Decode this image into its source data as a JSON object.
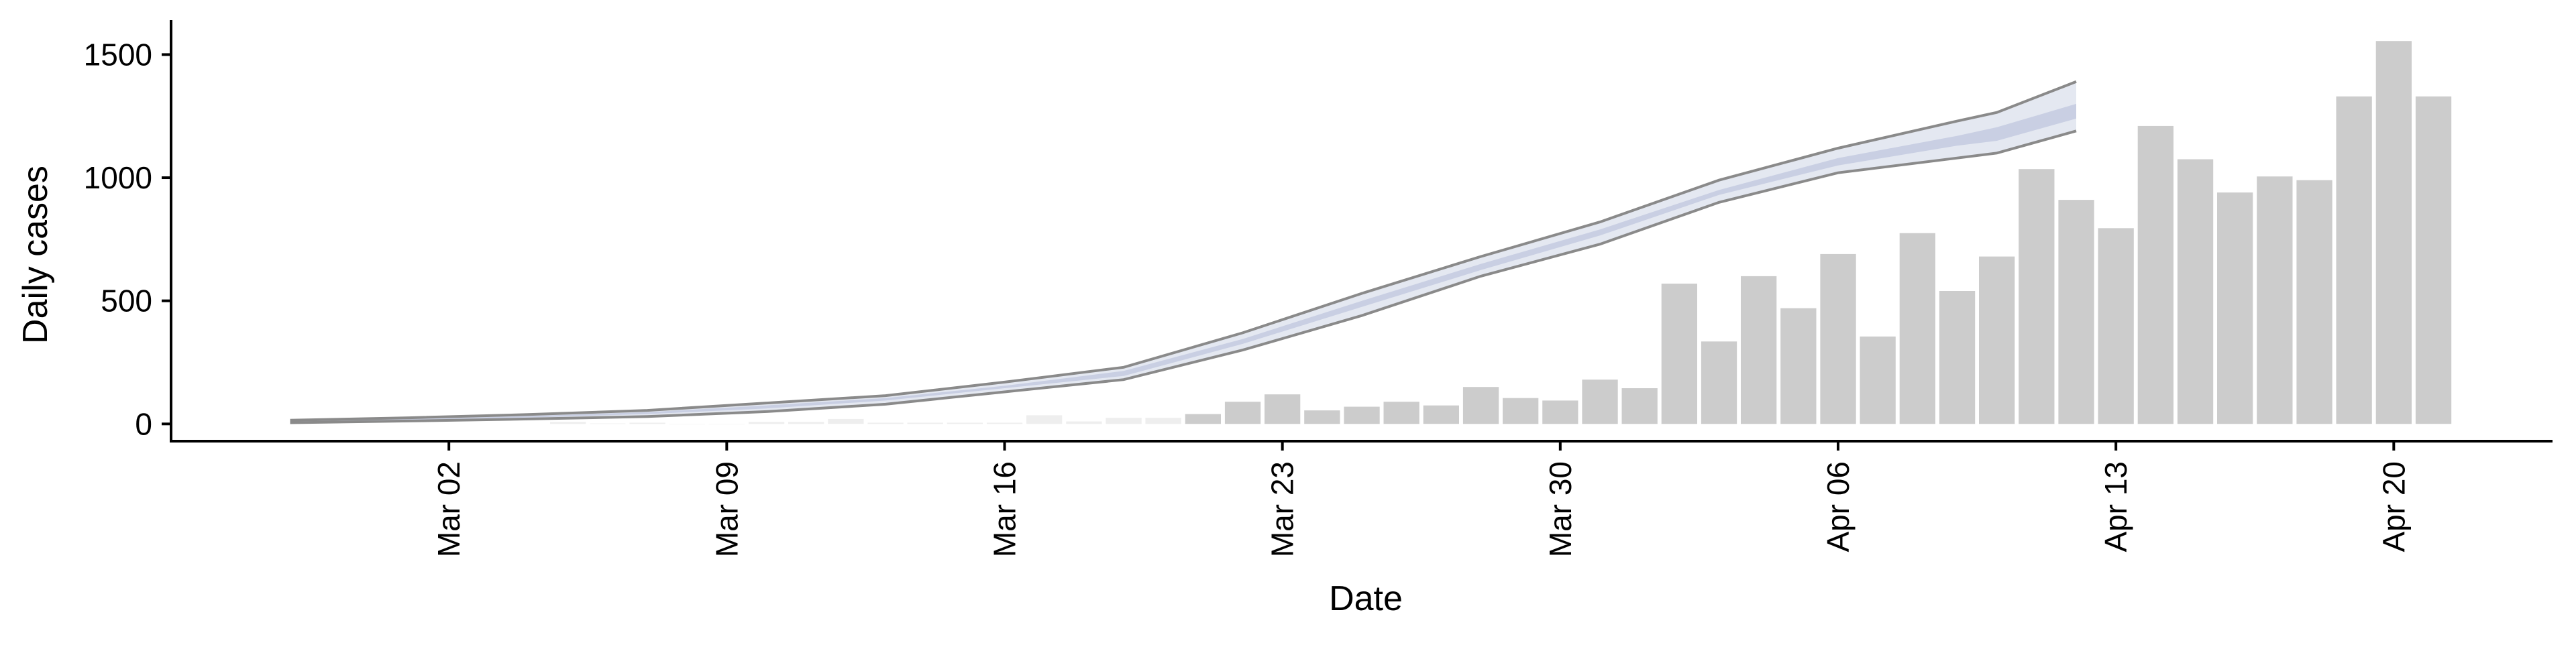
{
  "chart_data": {
    "type": "bar",
    "title": "",
    "xlabel": "Date",
    "ylabel": "Daily cases",
    "ylim": [
      -70,
      1640
    ],
    "xlim": [
      "2020-02-24",
      "2020-04-24"
    ],
    "grid": false,
    "x_ticks": [
      {
        "date": "2020-03-02",
        "label": "Mar 02"
      },
      {
        "date": "2020-03-09",
        "label": "Mar 09"
      },
      {
        "date": "2020-03-16",
        "label": "Mar 16"
      },
      {
        "date": "2020-03-23",
        "label": "Mar 23"
      },
      {
        "date": "2020-03-30",
        "label": "Mar 30"
      },
      {
        "date": "2020-04-06",
        "label": "Apr 06"
      },
      {
        "date": "2020-04-13",
        "label": "Apr 13"
      },
      {
        "date": "2020-04-20",
        "label": "Apr 20"
      }
    ],
    "y_ticks": [
      0,
      500,
      1000,
      1500
    ],
    "bars": {
      "start_date": "2020-03-05",
      "values": [
        8,
        2,
        5,
        0,
        0,
        8,
        8,
        20,
        5,
        5,
        5,
        5,
        35,
        10,
        25,
        25,
        40,
        90,
        120,
        55,
        70,
        90,
        75,
        150,
        105,
        95,
        180,
        145,
        570,
        335,
        600,
        470,
        690,
        355,
        775,
        540,
        680,
        1035,
        910,
        795,
        1210,
        1075,
        940,
        1005,
        990,
        1330,
        1555,
        1330
      ],
      "colors": {
        "observed": "#cccccc",
        "early": "#eeeeee"
      }
    },
    "estimate": {
      "dates": [
        "2020-02-27",
        "2020-03-01",
        "2020-03-04",
        "2020-03-07",
        "2020-03-10",
        "2020-03-13",
        "2020-03-16",
        "2020-03-19",
        "2020-03-22",
        "2020-03-25",
        "2020-03-28",
        "2020-03-31",
        "2020-04-03",
        "2020-04-06",
        "2020-04-09",
        "2020-04-10",
        "2020-04-12"
      ],
      "upper": [
        15,
        25,
        38,
        55,
        85,
        115,
        170,
        230,
        370,
        530,
        680,
        820,
        990,
        1120,
        1230,
        1265,
        1390
      ],
      "lower": [
        5,
        12,
        20,
        30,
        50,
        80,
        130,
        180,
        300,
        440,
        600,
        730,
        900,
        1020,
        1080,
        1100,
        1190
      ],
      "band50_upper": [
        12,
        20,
        32,
        48,
        75,
        105,
        155,
        215,
        345,
        500,
        650,
        790,
        950,
        1080,
        1170,
        1205,
        1300
      ],
      "band50_lower": [
        8,
        16,
        26,
        40,
        63,
        95,
        145,
        195,
        325,
        475,
        625,
        765,
        930,
        1050,
        1130,
        1150,
        1240
      ],
      "colors": {
        "line": "#8a8a8a",
        "band_outer": "#e4e8f1",
        "band_inner": "#c9cfe3"
      }
    }
  }
}
